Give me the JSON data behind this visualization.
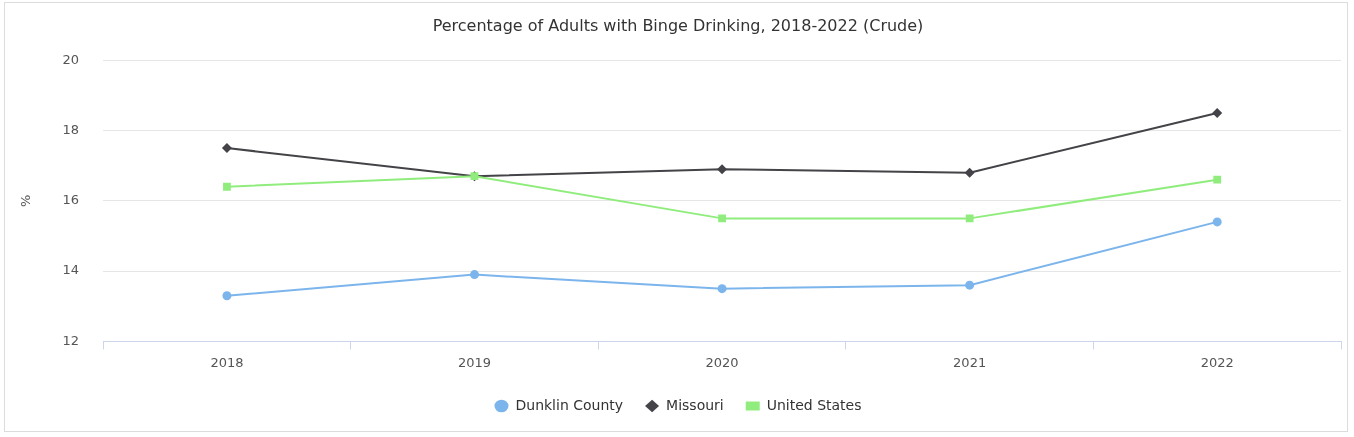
{
  "chart_data": {
    "type": "line",
    "title": "Percentage of Adults with Binge Drinking, 2018-2022 (Crude)",
    "ylabel": "%",
    "categories": [
      "2018",
      "2019",
      "2020",
      "2021",
      "2022"
    ],
    "series": [
      {
        "name": "Dunklin County",
        "color": "#7cb5ec",
        "marker": "circle",
        "values": [
          13.3,
          13.9,
          13.5,
          13.6,
          15.4
        ]
      },
      {
        "name": "Missouri",
        "color": "#434348",
        "marker": "diamond",
        "values": [
          17.5,
          16.7,
          16.9,
          16.8,
          18.5
        ]
      },
      {
        "name": "United States",
        "color": "#90ed7d",
        "marker": "square",
        "values": [
          16.4,
          16.7,
          15.5,
          15.5,
          16.6
        ]
      }
    ],
    "ylim": [
      12,
      20
    ],
    "yticks": [
      12,
      14,
      16,
      18,
      20
    ],
    "grid": "y",
    "legend": "bottom",
    "line_style": "solid"
  }
}
